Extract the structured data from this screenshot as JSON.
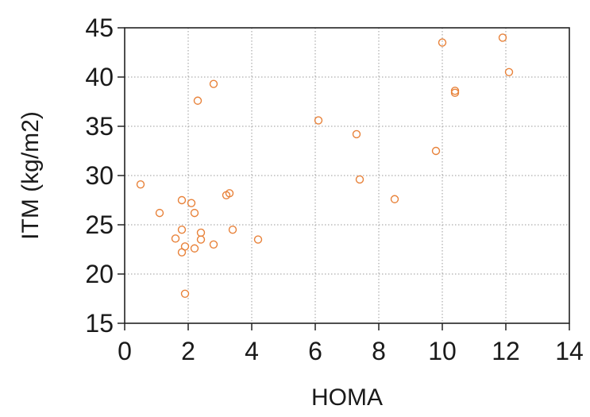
{
  "chart_data": {
    "type": "scatter",
    "title": "",
    "xlabel": "HOMA",
    "ylabel": "ITM (kg/m2)",
    "xlim": [
      0,
      14
    ],
    "ylim": [
      15,
      45
    ],
    "xticks": [
      0,
      2,
      4,
      6,
      8,
      10,
      12,
      14
    ],
    "yticks": [
      15,
      20,
      25,
      30,
      35,
      40,
      45
    ],
    "grid": true,
    "legend": "none",
    "marker_color": "#e8823a",
    "x": [
      0.5,
      1.1,
      1.6,
      1.8,
      1.8,
      1.8,
      1.9,
      1.9,
      2.1,
      2.2,
      2.2,
      2.3,
      2.4,
      2.4,
      2.8,
      2.8,
      3.2,
      3.3,
      3.4,
      4.2,
      6.1,
      7.3,
      7.4,
      8.5,
      9.8,
      10.0,
      10.4,
      10.4,
      11.9,
      12.1
    ],
    "y": [
      29.1,
      26.2,
      23.6,
      27.5,
      24.5,
      22.2,
      22.8,
      18.0,
      27.2,
      26.2,
      22.6,
      37.6,
      24.2,
      23.5,
      39.3,
      23.0,
      28.0,
      28.2,
      24.5,
      23.5,
      35.6,
      34.2,
      29.6,
      27.6,
      32.5,
      43.5,
      38.6,
      38.4,
      44.0,
      40.5
    ]
  }
}
